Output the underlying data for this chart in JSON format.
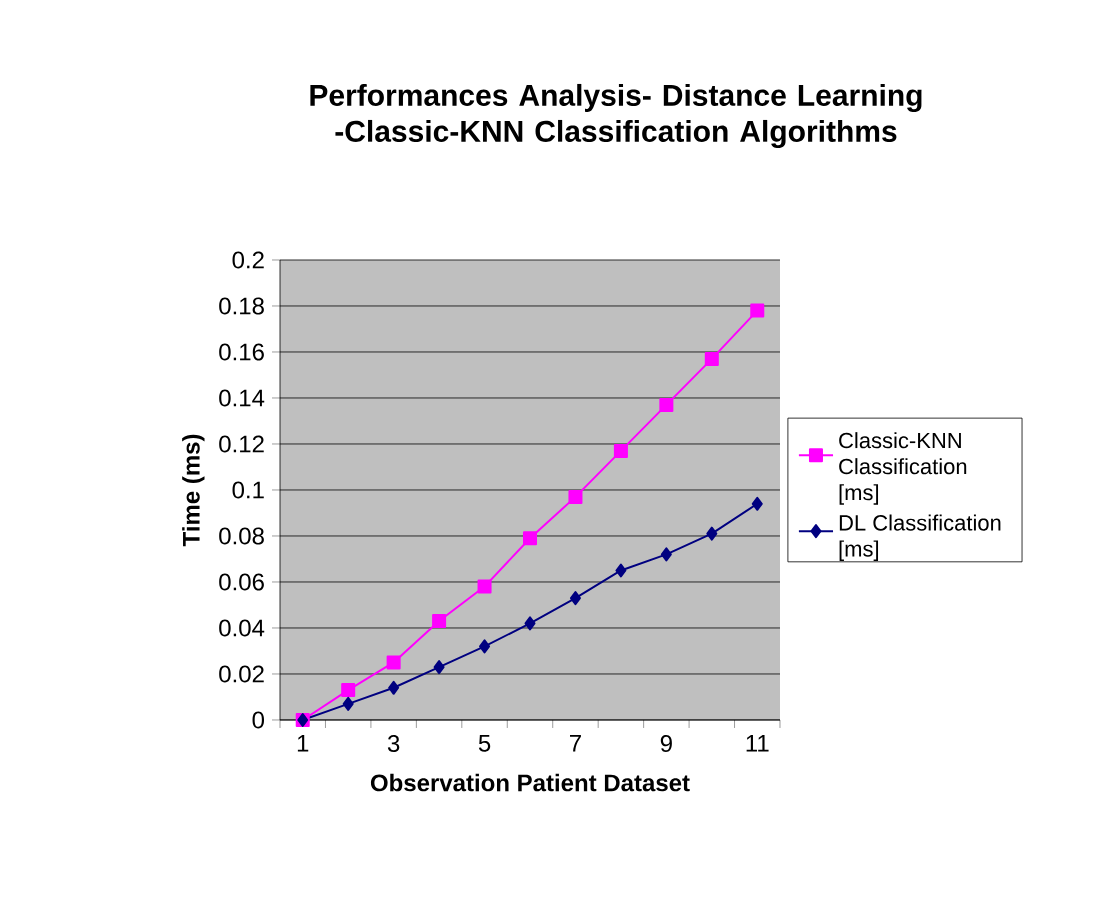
{
  "chart_data": {
    "type": "line",
    "title": "Performances Analysis- Distance Learning -Classic-KNN Classification Algorithms",
    "xlabel": "Observation Patient Dataset",
    "ylabel": "Time (ms)",
    "categories": [
      "1",
      null,
      "3",
      null,
      "5",
      null,
      "7",
      null,
      "9",
      null,
      "11"
    ],
    "series": [
      {
        "name": "Classic-KNN Classification [ms]",
        "color": "#ff00ff",
        "marker": "square",
        "values": [
          0,
          0.013,
          0.025,
          0.043,
          0.058,
          0.079,
          0.097,
          0.117,
          0.137,
          0.157,
          0.178
        ]
      },
      {
        "name": "DL Classification [ms]",
        "color": "#000080",
        "marker": "diamond",
        "values": [
          0,
          0.007,
          0.014,
          0.023,
          0.032,
          0.042,
          0.053,
          0.065,
          0.072,
          0.081,
          0.094
        ]
      }
    ],
    "ylim": [
      0,
      0.2
    ],
    "yticks": [
      0,
      0.02,
      0.04,
      0.06,
      0.08,
      0.1,
      0.12,
      0.14,
      0.16,
      0.18,
      0.2
    ],
    "grid": "y",
    "legend": "right"
  }
}
